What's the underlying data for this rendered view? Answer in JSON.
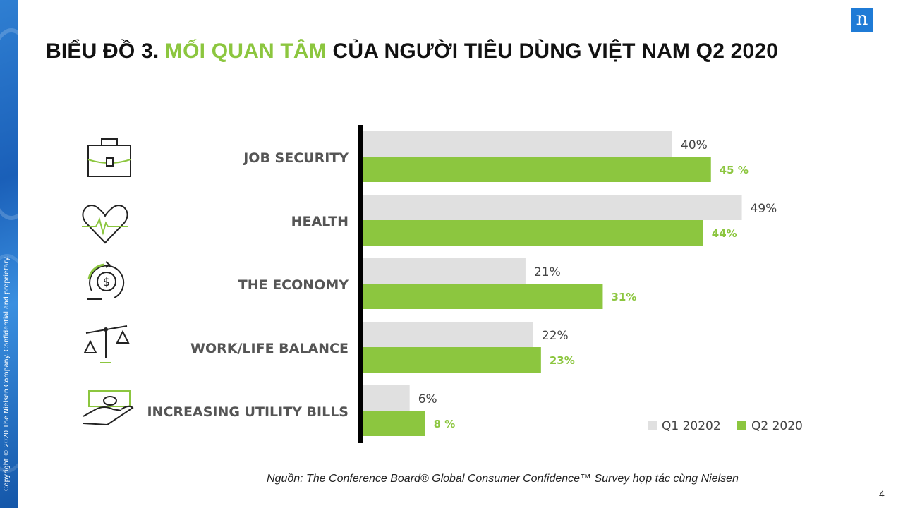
{
  "header": {
    "title_part1": "BIỂU ĐỒ 3. ",
    "title_accent": "MỐI QUAN TÂM",
    "title_part2": " CỦA NGƯỜI TIÊU DÙNG VIỆT NAM Q2 2020",
    "logo_letter": "n"
  },
  "sidebar": {
    "copyright": "Copyright © 2020 The Nielsen Company. Confidential and proprietary."
  },
  "footer": {
    "source": "Nguồn: The Conference Board® Global Consumer Confidence™ Survey hợp tác cùng Nielsen",
    "page_number": "4"
  },
  "colors": {
    "q1": "#e0e0e0",
    "q2": "#8cc63f",
    "axis": "#000000",
    "logo": "#1f7bd6"
  },
  "icons": [
    "briefcase-icon",
    "heart-pulse-icon",
    "dollar-cycle-icon",
    "balance-scale-icon",
    "hand-money-icon"
  ],
  "chart_data": {
    "type": "bar",
    "orientation": "horizontal",
    "categories": [
      "JOB SECURITY",
      "HEALTH",
      "THE ECONOMY",
      "WORK/LIFE BALANCE",
      "INCREASING UTILITY BILLS"
    ],
    "series": [
      {
        "name": "Q1 20202",
        "values": [
          40,
          49,
          21,
          22,
          6
        ],
        "labels": [
          "40%",
          "49%",
          "21%",
          "22%",
          "6%"
        ]
      },
      {
        "name": "Q2 2020",
        "values": [
          45,
          44,
          31,
          23,
          8
        ],
        "labels": [
          "45 %",
          "44%",
          "31%",
          "23%",
          "8 %"
        ]
      }
    ],
    "xlim": [
      0,
      55
    ],
    "legend": "bottom-right",
    "grid": false
  }
}
